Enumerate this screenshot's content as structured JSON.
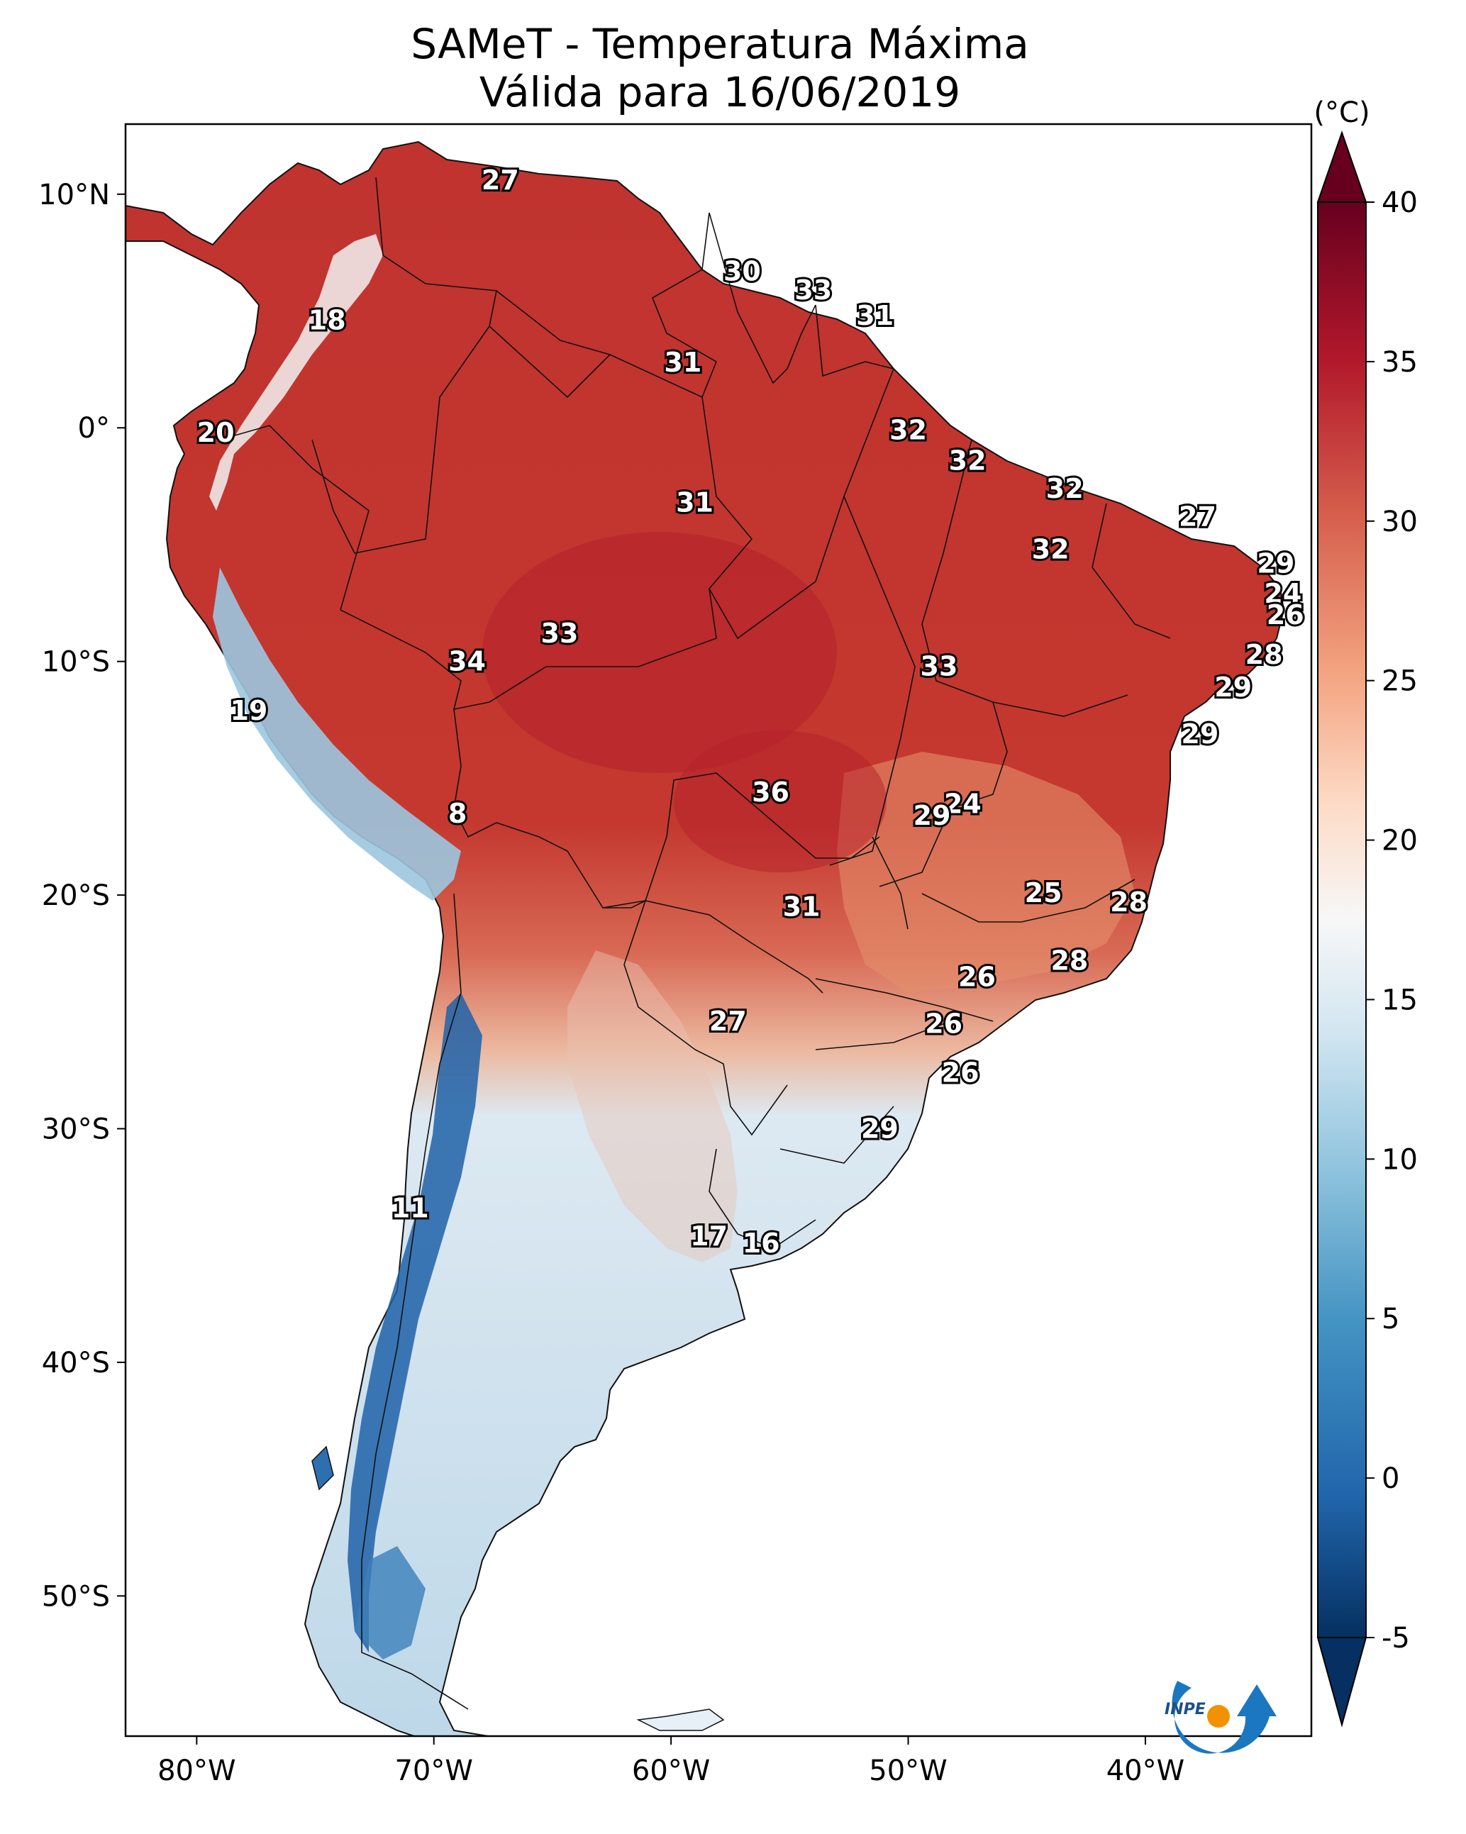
{
  "title": {
    "line1": "SAMeT - Temperatura Máxima",
    "line2": "Válida para 16/06/2019"
  },
  "map": {
    "lon_ticks": [
      "80°W",
      "70°W",
      "60°W",
      "50°W",
      "40°W"
    ],
    "lat_ticks": [
      "10°N",
      "0°",
      "10°S",
      "20°S",
      "30°S",
      "40°S",
      "50°S"
    ],
    "lon_range": [
      -83,
      -33
    ],
    "lat_range": [
      -56,
      13
    ]
  },
  "colorbar": {
    "unit": "(°C)",
    "ticks": [
      "40",
      "35",
      "30",
      "25",
      "20",
      "15",
      "10",
      "5",
      "0",
      "-5"
    ],
    "range": [
      -5,
      40
    ],
    "colors": [
      "#053061",
      "#2166ac",
      "#4393c3",
      "#92c5de",
      "#d1e5f0",
      "#f7f7f7",
      "#fddbc7",
      "#f4a582",
      "#d6604d",
      "#b2182b",
      "#67001f"
    ]
  },
  "station_labels": [
    {
      "text": "27",
      "lon": -67.2,
      "lat": 10.6
    },
    {
      "text": "18",
      "lon": -74.5,
      "lat": 4.6
    },
    {
      "text": "30",
      "lon": -57.0,
      "lat": 6.7
    },
    {
      "text": "33",
      "lon": -54.0,
      "lat": 5.9
    },
    {
      "text": "31",
      "lon": -51.4,
      "lat": 4.8
    },
    {
      "text": "31",
      "lon": -59.5,
      "lat": 2.8
    },
    {
      "text": "20",
      "lon": -79.2,
      "lat": -0.2
    },
    {
      "text": "32",
      "lon": -50.0,
      "lat": -0.1
    },
    {
      "text": "32",
      "lon": -47.5,
      "lat": -1.4
    },
    {
      "text": "31",
      "lon": -59.0,
      "lat": -3.2
    },
    {
      "text": "32",
      "lon": -43.4,
      "lat": -2.6
    },
    {
      "text": "27",
      "lon": -37.8,
      "lat": -3.8
    },
    {
      "text": "32",
      "lon": -44.0,
      "lat": -5.2
    },
    {
      "text": "29",
      "lon": -34.5,
      "lat": -5.8
    },
    {
      "text": "24",
      "lon": -34.2,
      "lat": -7.1
    },
    {
      "text": "26",
      "lon": -34.1,
      "lat": -8.0
    },
    {
      "text": "33",
      "lon": -64.7,
      "lat": -8.8
    },
    {
      "text": "34",
      "lon": -68.6,
      "lat": -10.0
    },
    {
      "text": "33",
      "lon": -48.7,
      "lat": -10.2
    },
    {
      "text": "28",
      "lon": -35.0,
      "lat": -9.7
    },
    {
      "text": "29",
      "lon": -36.3,
      "lat": -11.1
    },
    {
      "text": "19",
      "lon": -77.8,
      "lat": -12.1
    },
    {
      "text": "29",
      "lon": -37.7,
      "lat": -13.1
    },
    {
      "text": "36",
      "lon": -55.8,
      "lat": -15.6
    },
    {
      "text": "24",
      "lon": -47.7,
      "lat": -16.1
    },
    {
      "text": "29",
      "lon": -49.0,
      "lat": -16.6
    },
    {
      "text": "8",
      "lon": -69.0,
      "lat": -16.5
    },
    {
      "text": "25",
      "lon": -44.3,
      "lat": -19.9
    },
    {
      "text": "28",
      "lon": -40.7,
      "lat": -20.3
    },
    {
      "text": "31",
      "lon": -54.5,
      "lat": -20.5
    },
    {
      "text": "28",
      "lon": -43.2,
      "lat": -22.8
    },
    {
      "text": "26",
      "lon": -47.1,
      "lat": -23.5
    },
    {
      "text": "27",
      "lon": -57.6,
      "lat": -25.4
    },
    {
      "text": "26",
      "lon": -48.5,
      "lat": -25.5
    },
    {
      "text": "26",
      "lon": -47.8,
      "lat": -27.6
    },
    {
      "text": "29",
      "lon": -51.2,
      "lat": -30.0
    },
    {
      "text": "11",
      "lon": -71.0,
      "lat": -33.4
    },
    {
      "text": "17",
      "lon": -58.4,
      "lat": -34.6
    },
    {
      "text": "16",
      "lon": -56.2,
      "lat": -34.9
    }
  ],
  "logo": {
    "text": "INPE"
  }
}
